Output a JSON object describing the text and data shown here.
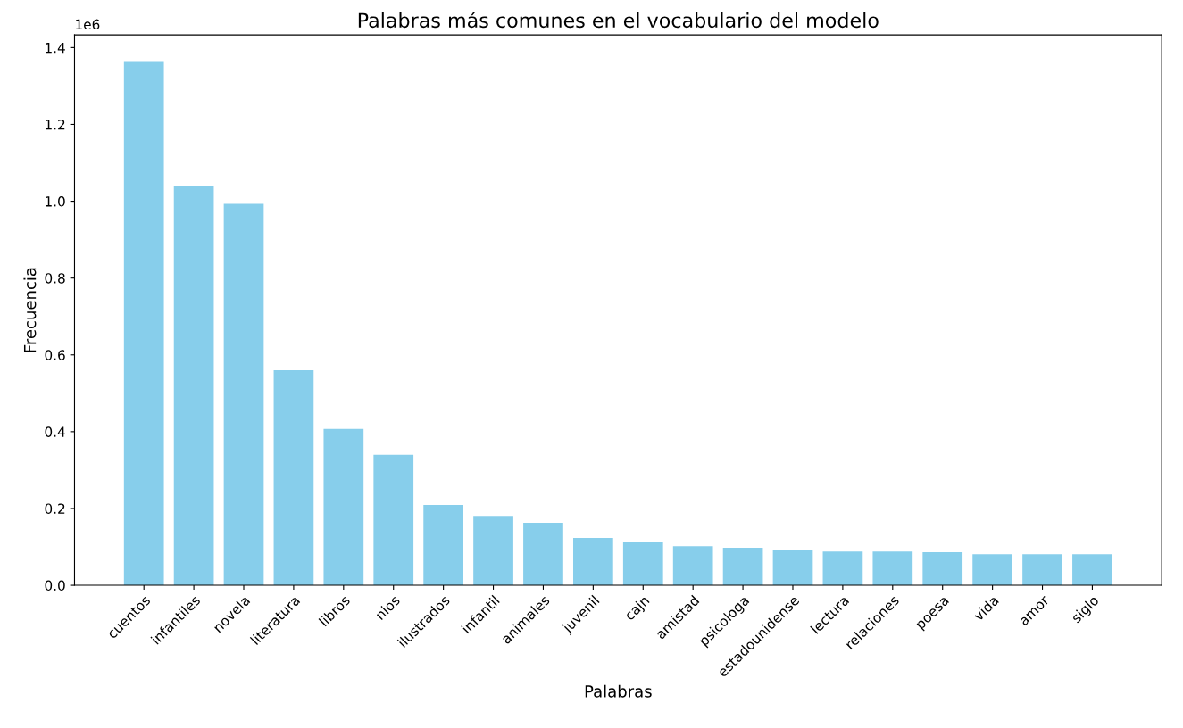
{
  "chart_data": {
    "type": "bar",
    "title": "Palabras más comunes en el vocabulario del modelo",
    "xlabel": "Palabras",
    "ylabel": "Frecuencia",
    "categories": [
      "cuentos",
      "infantiles",
      "novela",
      "literatura",
      "libros",
      "nios",
      "ilustrados",
      "infantil",
      "animales",
      "juvenil",
      "cajn",
      "amistad",
      "psicologa",
      "estadounidense",
      "lectura",
      "relaciones",
      "poesa",
      "vida",
      "amor",
      "siglo"
    ],
    "values": [
      1.365,
      1.04,
      0.993,
      0.56,
      0.407,
      0.34,
      0.209,
      0.181,
      0.163,
      0.123,
      0.114,
      0.102,
      0.098,
      0.091,
      0.088,
      0.088,
      0.086,
      0.081,
      0.081,
      0.081
    ],
    "color": "#87ceeb",
    "ylim": [
      0,
      1.433
    ],
    "yticks": [
      {
        "value": 0,
        "label": "0.0"
      },
      0.2,
      0.4,
      0.6,
      0.8,
      {
        "value": 1.0,
        "label": "1.0"
      },
      1.2,
      1.4
    ],
    "annotations": [
      "1e6"
    ],
    "grid": false,
    "legend": false
  }
}
